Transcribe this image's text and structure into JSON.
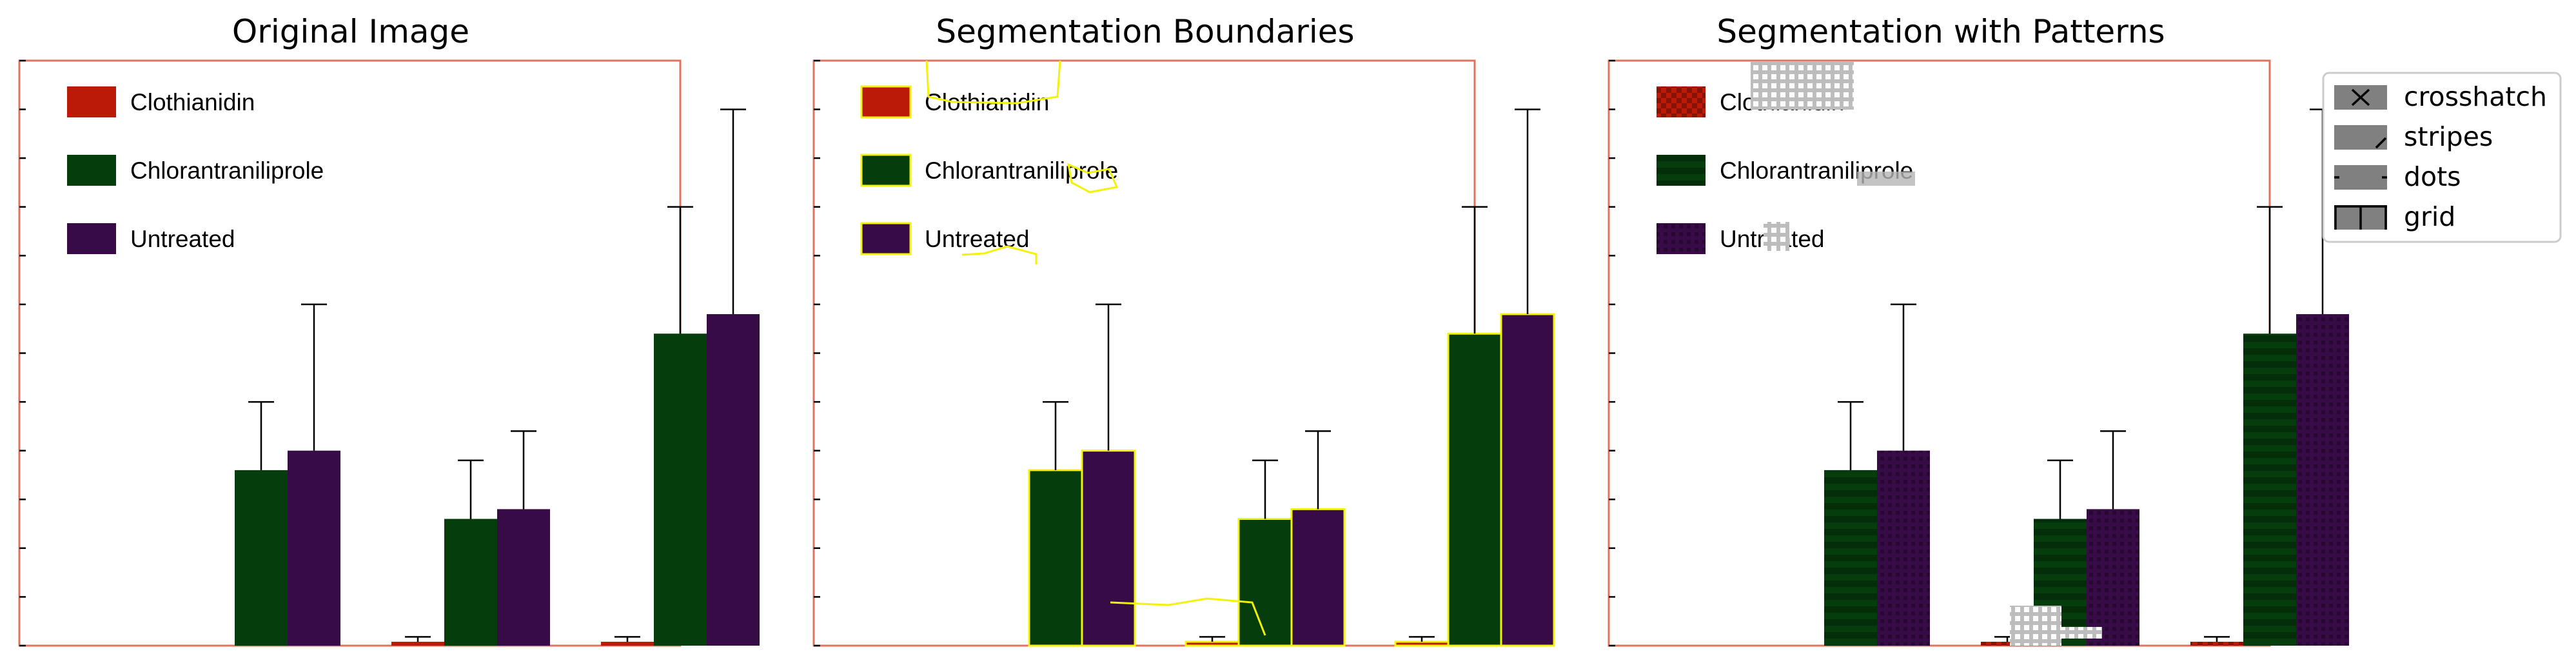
{
  "panels": [
    {
      "title": "Original Image",
      "mode": "original"
    },
    {
      "title": "Segmentation Boundaries",
      "mode": "boundaries"
    },
    {
      "title": "Segmentation with Patterns",
      "mode": "patterns"
    }
  ],
  "chart_data": {
    "type": "bar",
    "groups": 3,
    "ylim": [
      0,
      6.0
    ],
    "yticks": [
      0,
      0.5,
      1.0,
      1.5,
      2.0,
      2.5,
      3.0,
      3.5,
      4.0,
      4.5,
      5.0,
      5.5,
      6.0
    ],
    "show_tick_labels": false,
    "grid": false,
    "legend_position": "top-left",
    "series": [
      {
        "name": "Clothianidin",
        "color": "#bb1a08",
        "values": [
          0.0,
          0.04,
          0.04
        ],
        "errors": [
          0.0,
          0.05,
          0.05
        ]
      },
      {
        "name": "Chlorantraniliprole",
        "color": "#053d0c",
        "values": [
          1.8,
          1.3,
          3.2
        ],
        "errors": [
          0.7,
          0.6,
          1.3
        ]
      },
      {
        "name": "Untreated",
        "color": "#370b45",
        "values": [
          2.0,
          1.4,
          3.4
        ],
        "errors": [
          1.5,
          0.8,
          2.1
        ]
      }
    ]
  },
  "pattern_legend": {
    "items": [
      {
        "label": "crosshatch",
        "icon": "crosshatch-icon"
      },
      {
        "label": "stripes",
        "icon": "stripes-icon"
      },
      {
        "label": "dots",
        "icon": "dots-icon"
      },
      {
        "label": "grid",
        "icon": "grid-icon"
      }
    ]
  },
  "colors": {
    "frame": "#e0735f",
    "boundary": "#f2f20a",
    "overlay_gray": "#9a9a9a",
    "axis_ticks": "#000000"
  }
}
